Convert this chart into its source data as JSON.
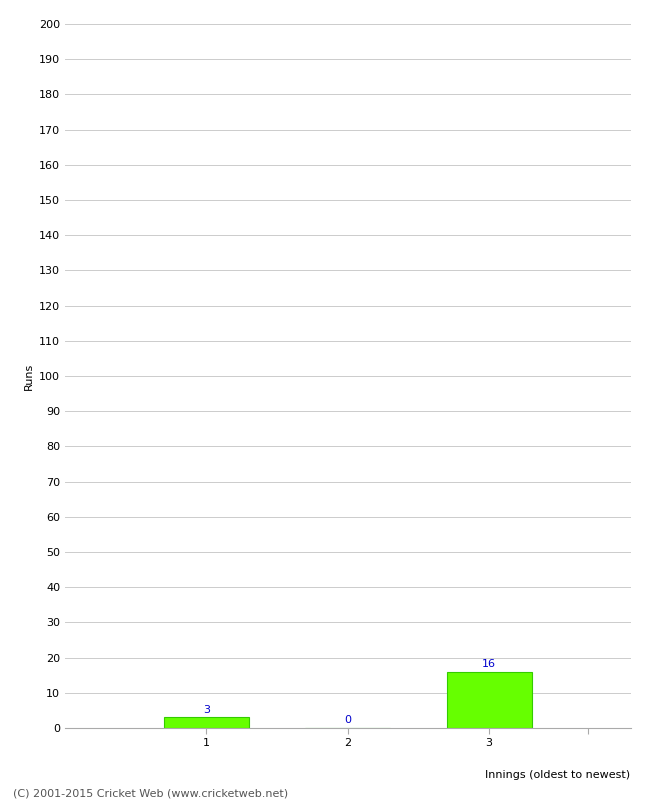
{
  "categories": [
    "1",
    "2",
    "3"
  ],
  "values": [
    3,
    0,
    16
  ],
  "bar_positions": [
    1,
    2,
    3
  ],
  "bar_color": "#66ff00",
  "bar_edge_color": "#33cc00",
  "annotation_color": "#0000cc",
  "ylabel": "Runs",
  "xlabel": "Innings (oldest to newest)",
  "ylim": [
    0,
    200
  ],
  "xlim": [
    0,
    4
  ],
  "ytick_step": 10,
  "xtick_positions": [
    1,
    2,
    3,
    3.7
  ],
  "xtick_labels": [
    "1",
    "2",
    "3",
    ""
  ],
  "bar_width": 0.6,
  "background_color": "#ffffff",
  "grid_color": "#cccccc",
  "footer": "(C) 2001-2015 Cricket Web (www.cricketweb.net)",
  "annotation_fontsize": 8,
  "axis_label_fontsize": 8,
  "tick_fontsize": 8,
  "footer_fontsize": 8
}
